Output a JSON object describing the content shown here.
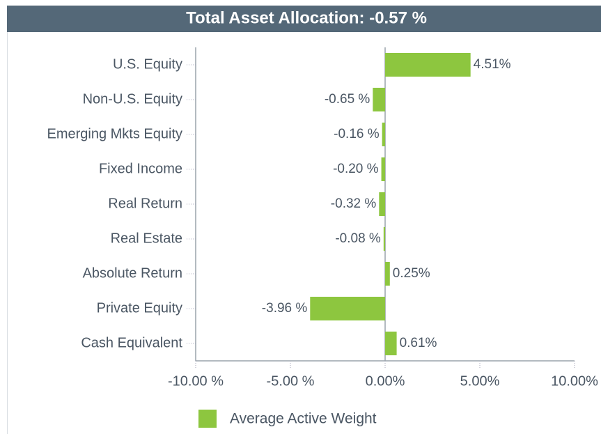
{
  "chart_data": {
    "type": "hbar",
    "title": "Total Asset Allocation: -0.57 %",
    "categories": [
      "U.S. Equity",
      "Non-U.S. Equity",
      "Emerging Mkts Equity",
      "Fixed Income",
      "Real Return",
      "Real Estate",
      "Absolute Return",
      "Private Equity",
      "Cash Equivalent"
    ],
    "series": [
      {
        "name": "Average Active Weight",
        "color": "#8dc63f",
        "values": [
          4.51,
          -0.65,
          -0.16,
          -0.2,
          -0.32,
          -0.08,
          0.25,
          -3.96,
          0.61
        ],
        "value_labels": [
          "4.51%",
          "-0.65 %",
          "-0.16 %",
          "-0.20 %",
          "-0.32 %",
          "-0.08 %",
          "0.25%",
          "-3.96 %",
          "0.61%"
        ]
      }
    ],
    "xlim": [
      -10,
      10
    ],
    "xticks": [
      {
        "value": -10,
        "label": "-10.00 %"
      },
      {
        "value": -5,
        "label": "-5.00 %"
      },
      {
        "value": 0,
        "label": "0.00%"
      },
      {
        "value": 5,
        "label": "5.00%"
      },
      {
        "value": 10,
        "label": "10.00%"
      }
    ],
    "legend": "bottom"
  }
}
